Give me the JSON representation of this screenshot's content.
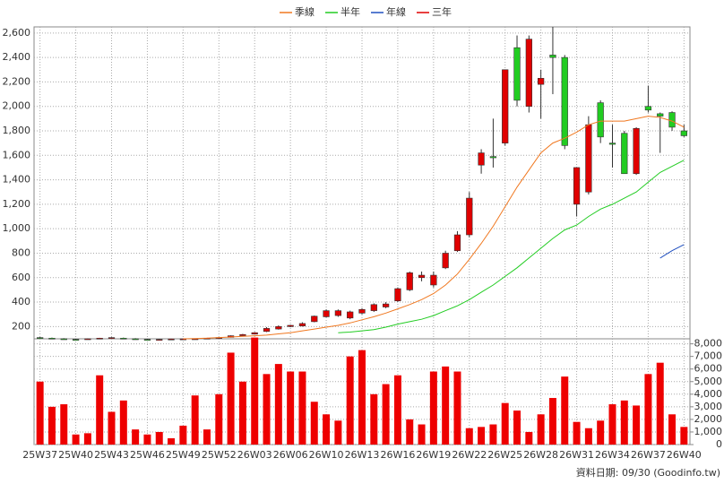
{
  "chart_data": {
    "type": "candlestick",
    "categories": [
      "25W37",
      null,
      null,
      "25W40",
      null,
      null,
      "25W43",
      null,
      null,
      "25W46",
      null,
      null,
      "25W49",
      null,
      null,
      "25W52",
      null,
      null,
      "26W03",
      null,
      null,
      "26W06",
      null,
      null,
      "26W10",
      null,
      null,
      "26W13",
      null,
      null,
      "26W16",
      null,
      null,
      "26W19",
      null,
      null,
      "26W22",
      null,
      null,
      "26W25",
      null,
      null,
      "26W28",
      null,
      null,
      "26W31",
      null,
      null,
      "26W34",
      null,
      null,
      "26W37",
      null,
      null,
      "26W40"
    ],
    "open": [
      110,
      105,
      100,
      95,
      98,
      102,
      108,
      105,
      100,
      95,
      93,
      96,
      97,
      98,
      102,
      106,
      112,
      125,
      138,
      160,
      180,
      200,
      205,
      240,
      280,
      290,
      270,
      310,
      330,
      360,
      410,
      500,
      600,
      540,
      680,
      820,
      950,
      1520,
      1590,
      1700,
      2480,
      2000,
      2180,
      2420,
      2400,
      1200,
      1300,
      2030,
      1700,
      1780,
      1450,
      2000,
      1940,
      1950,
      1800
    ],
    "high": [
      115,
      110,
      105,
      100,
      103,
      108,
      113,
      110,
      105,
      100,
      98,
      101,
      102,
      103,
      108,
      112,
      128,
      140,
      155,
      195,
      210,
      215,
      235,
      290,
      340,
      340,
      330,
      350,
      390,
      400,
      520,
      650,
      650,
      650,
      820,
      980,
      1300,
      1650,
      1900,
      2300,
      2580,
      2580,
      2300,
      2650,
      2420,
      1500,
      1920,
      2050,
      1850,
      1800,
      1830,
      2170,
      1950,
      1960,
      1850
    ],
    "low": [
      105,
      100,
      95,
      90,
      93,
      98,
      103,
      100,
      95,
      90,
      88,
      91,
      92,
      93,
      98,
      102,
      110,
      120,
      135,
      155,
      175,
      195,
      200,
      235,
      275,
      280,
      260,
      300,
      320,
      350,
      400,
      490,
      570,
      520,
      670,
      810,
      930,
      1450,
      1500,
      1680,
      2000,
      1950,
      1900,
      2100,
      1650,
      1100,
      1280,
      1700,
      1500,
      1450,
      1440,
      1950,
      1620,
      1800,
      1750
    ],
    "close": [
      108,
      103,
      98,
      93,
      100,
      105,
      110,
      103,
      98,
      93,
      95,
      98,
      99,
      100,
      105,
      110,
      125,
      135,
      150,
      185,
      200,
      210,
      225,
      285,
      330,
      330,
      320,
      340,
      380,
      385,
      510,
      640,
      620,
      620,
      800,
      950,
      1250,
      1620,
      1580,
      2300,
      2050,
      2550,
      2230,
      2400,
      1680,
      1500,
      1850,
      1750,
      1690,
      1450,
      1820,
      1970,
      1920,
      1830,
      1760
    ],
    "up_color": "#e00000",
    "down_color": "#22cc22",
    "series": [
      {
        "name": "季線",
        "color": "#f07820",
        "values": [
          null,
          null,
          null,
          null,
          null,
          null,
          null,
          null,
          null,
          null,
          null,
          null,
          100,
          102,
          105,
          110,
          115,
          120,
          125,
          130,
          140,
          150,
          165,
          180,
          195,
          210,
          230,
          255,
          280,
          310,
          345,
          380,
          420,
          470,
          540,
          630,
          750,
          880,
          1020,
          1180,
          1340,
          1480,
          1620,
          1700,
          1740,
          1790,
          1850,
          1880,
          1880,
          1880,
          1900,
          1920,
          1910,
          1880,
          1830
        ]
      },
      {
        "name": "半年",
        "color": "#22cc22",
        "values": [
          null,
          null,
          null,
          null,
          null,
          null,
          null,
          null,
          null,
          null,
          null,
          null,
          null,
          null,
          null,
          null,
          null,
          null,
          null,
          null,
          null,
          null,
          null,
          null,
          null,
          150,
          155,
          165,
          175,
          195,
          220,
          240,
          260,
          290,
          330,
          370,
          420,
          480,
          540,
          610,
          680,
          760,
          840,
          920,
          990,
          1030,
          1100,
          1160,
          1200,
          1250,
          1300,
          1380,
          1460,
          1510,
          1560
        ]
      },
      {
        "name": "年線",
        "color": "#2050c0",
        "values": [
          null,
          null,
          null,
          null,
          null,
          null,
          null,
          null,
          null,
          null,
          null,
          null,
          null,
          null,
          null,
          null,
          null,
          null,
          null,
          null,
          null,
          null,
          null,
          null,
          null,
          null,
          null,
          null,
          null,
          null,
          null,
          null,
          null,
          null,
          null,
          null,
          null,
          null,
          null,
          null,
          null,
          null,
          null,
          null,
          null,
          null,
          null,
          null,
          null,
          null,
          null,
          null,
          760,
          820,
          870
        ]
      },
      {
        "name": "三年",
        "color": "#e00000",
        "values": [
          null,
          null,
          null,
          null,
          null,
          null,
          null,
          null,
          null,
          null,
          null,
          null,
          null,
          null,
          null,
          null,
          null,
          null,
          null,
          null,
          null,
          null,
          null,
          null,
          null,
          null,
          null,
          null,
          null,
          null,
          null,
          null,
          null,
          null,
          null,
          null,
          null,
          null,
          null,
          null,
          null,
          null,
          null,
          null,
          null,
          null,
          null,
          null,
          null,
          null,
          null,
          null,
          null,
          null,
          null
        ]
      }
    ],
    "ylim": [
      100,
      2650
    ],
    "yticks": [
      200,
      400,
      600,
      800,
      {
        "value": 1000,
        "label": "1,000"
      },
      {
        "value": 1200,
        "label": "1,200"
      },
      {
        "value": 1400,
        "label": "1,400"
      },
      {
        "value": 1600,
        "label": "1,600"
      },
      {
        "value": 1800,
        "label": "1,800"
      },
      {
        "value": 2000,
        "label": "2,000"
      },
      {
        "value": 2200,
        "label": "2,200"
      },
      {
        "value": 2400,
        "label": "2,400"
      },
      {
        "value": 2600,
        "label": "2,600"
      }
    ],
    "grid": true,
    "volume": {
      "color": "#ee0000",
      "values": [
        5000,
        3000,
        3200,
        800,
        900,
        5500,
        2600,
        3500,
        1200,
        800,
        1000,
        500,
        1500,
        3900,
        1200,
        4000,
        7300,
        5000,
        8500,
        5600,
        6400,
        5800,
        5800,
        3400,
        2400,
        1900,
        7000,
        7500,
        4000,
        4800,
        5500,
        2000,
        1600,
        5800,
        6200,
        5800,
        1300,
        1400,
        1600,
        3300,
        2700,
        1000,
        2400,
        3700,
        5400,
        1800,
        1300,
        1900,
        3200,
        3500,
        3100,
        5600,
        6500,
        2400,
        1400
      ],
      "ylim": [
        0,
        8400
      ],
      "yticks": [
        0,
        {
          "value": 1000,
          "label": "1,000"
        },
        {
          "value": 2000,
          "label": "2,000"
        },
        {
          "value": 3000,
          "label": "3,000"
        },
        {
          "value": 4000,
          "label": "4,000"
        },
        {
          "value": 5000,
          "label": "5,000"
        },
        {
          "value": 6000,
          "label": "6,000"
        },
        {
          "value": 7000,
          "label": "7,000"
        },
        {
          "value": 8000,
          "label": "8,000"
        }
      ]
    },
    "source": "資料日期: 09/30  (Goodinfo.tw)"
  }
}
